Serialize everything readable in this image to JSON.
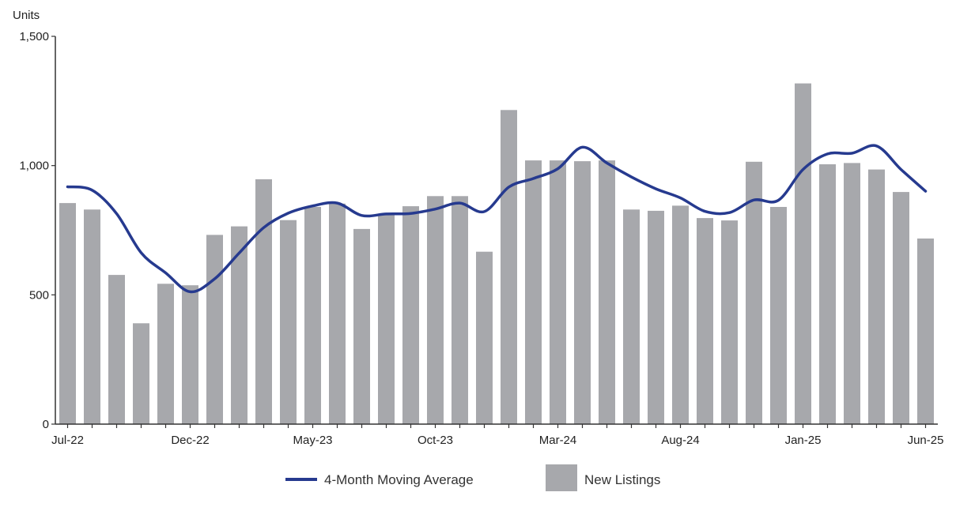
{
  "chart_data": {
    "type": "bar",
    "ylabel": "Units",
    "ylim": [
      0,
      1500
    ],
    "y_ticks": [
      0,
      500,
      1000,
      1500
    ],
    "y_tick_labels": [
      "0",
      "500",
      "1,000",
      "1,500"
    ],
    "categories": [
      "Jul-22",
      "Aug-22",
      "Sep-22",
      "Oct-22",
      "Nov-22",
      "Dec-22",
      "Jan-23",
      "Feb-23",
      "Mar-23",
      "Apr-23",
      "May-23",
      "Jun-23",
      "Jul-23",
      "Aug-23",
      "Sep-23",
      "Oct-23",
      "Nov-23",
      "Dec-23",
      "Jan-24",
      "Feb-24",
      "Mar-24",
      "Apr-24",
      "May-24",
      "Jun-24",
      "Jul-24",
      "Aug-24",
      "Sep-24",
      "Oct-24",
      "Nov-24",
      "Dec-24",
      "Jan-25",
      "Feb-25",
      "Mar-25",
      "Apr-25",
      "May-25",
      "Jun-25"
    ],
    "x_tick_labels": [
      "Jul-22",
      "Dec-22",
      "May-23",
      "Oct-23",
      "Mar-24",
      "Aug-24",
      "Jan-25",
      "Jun-25"
    ],
    "series": [
      {
        "name": "New Listings",
        "kind": "bar",
        "color": "#a7a8ac",
        "values": [
          855,
          830,
          577,
          390,
          543,
          537,
          732,
          765,
          947,
          789,
          840,
          853,
          755,
          810,
          843,
          882,
          882,
          667,
          1215,
          1020,
          1020,
          1017,
          1020,
          830,
          825,
          845,
          797,
          788,
          1015,
          840,
          1318,
          1005,
          1010,
          985,
          898,
          718
        ]
      },
      {
        "name": "4-Month Moving Average",
        "kind": "line",
        "color": "#263a8f",
        "values": [
          918,
          905,
          814,
          663,
          585,
          512,
          562,
          662,
          760,
          816,
          844,
          855,
          807,
          813,
          815,
          832,
          855,
          822,
          917,
          950,
          988,
          1071,
          1010,
          956,
          910,
          875,
          823,
          818,
          867,
          866,
          985,
          1045,
          1048,
          1076,
          985,
          901
        ]
      }
    ],
    "legend": {
      "placement": "bottom-center",
      "line_label": "4-Month Moving Average",
      "bar_label": "New Listings"
    }
  }
}
